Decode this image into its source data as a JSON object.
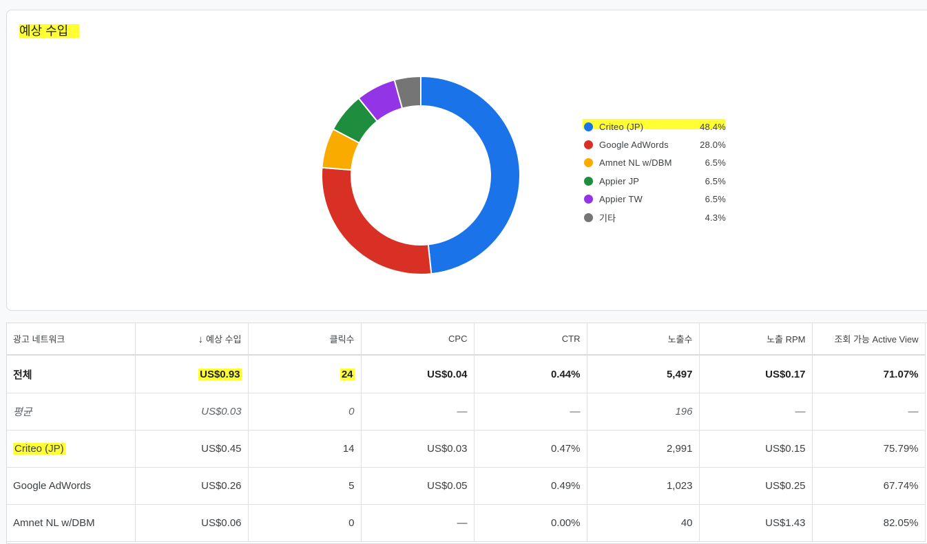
{
  "card": {
    "title": "예상 수입"
  },
  "chart_data": {
    "type": "pie",
    "title": "예상 수입",
    "categories": [
      "Criteo (JP)",
      "Google AdWords",
      "Amnet NL w/DBM",
      "Appier JP",
      "Appier TW",
      "기타"
    ],
    "values": [
      48.4,
      28.0,
      6.5,
      6.5,
      6.5,
      4.3
    ],
    "labels": [
      "48.4%",
      "28.0%",
      "6.5%",
      "6.5%",
      "6.5%",
      "4.3%"
    ],
    "colors": [
      "#1a73e8",
      "#d93025",
      "#f9ab00",
      "#1e8e3e",
      "#9334e6",
      "#757575"
    ],
    "legend_position": "right",
    "style": "donut"
  },
  "table": {
    "headers": [
      "광고 네트워크",
      "예상 수입",
      "클릭수",
      "CPC",
      "CTR",
      "노출수",
      "노출 RPM",
      "조회 가능 Active View"
    ],
    "sort_icon": "arrow-down-icon",
    "rows": [
      {
        "type": "total",
        "cells": [
          "전체",
          "US$0.93",
          "24",
          "US$0.04",
          "0.44%",
          "5,497",
          "US$0.17",
          "71.07%"
        ]
      },
      {
        "type": "avg",
        "cells": [
          "평균",
          "US$0.03",
          "0",
          "—",
          "—",
          "196",
          "—",
          "—"
        ]
      },
      {
        "type": "row",
        "cells": [
          "Criteo (JP)",
          "US$0.45",
          "14",
          "US$0.03",
          "0.47%",
          "2,991",
          "US$0.15",
          "75.79%"
        ]
      },
      {
        "type": "row",
        "cells": [
          "Google AdWords",
          "US$0.26",
          "5",
          "US$0.05",
          "0.49%",
          "1,023",
          "US$0.25",
          "67.74%"
        ]
      },
      {
        "type": "row",
        "cells": [
          "Amnet NL w/DBM",
          "US$0.06",
          "0",
          "—",
          "0.00%",
          "40",
          "US$1.43",
          "82.05%"
        ]
      }
    ]
  },
  "highlight_color": "#ffff33"
}
